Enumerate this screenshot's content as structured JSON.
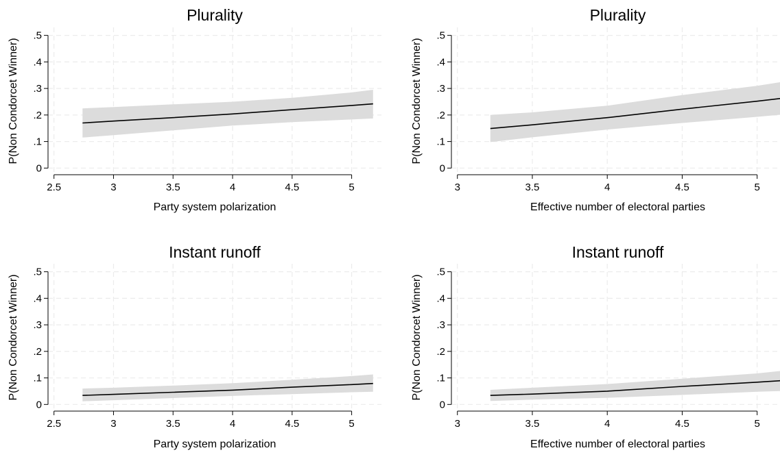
{
  "chart_data": [
    {
      "type": "line",
      "title": "Plurality",
      "xlabel": "Party system polarization",
      "ylabel": "P(Non Condorcet Winner)",
      "xlim": [
        2.45,
        5.25
      ],
      "ylim": [
        -0.025,
        0.53
      ],
      "xticks": [
        2.5,
        3,
        3.5,
        4,
        4.5,
        5
      ],
      "xtick_labels": [
        "2.5",
        "3",
        "3.5",
        "4",
        "4.5",
        "5"
      ],
      "yticks": [
        0,
        0.1,
        0.2,
        0.3,
        0.4,
        0.5
      ],
      "ytick_labels": [
        "0",
        ".1",
        ".2",
        ".3",
        ".4",
        ".5"
      ],
      "grid": true,
      "x": [
        2.74,
        3.0,
        3.5,
        4.0,
        4.5,
        5.0,
        5.18
      ],
      "series": [
        {
          "role": "estimate",
          "values": [
            0.17,
            0.177,
            0.19,
            0.204,
            0.22,
            0.236,
            0.242
          ]
        },
        {
          "role": "ci_upper",
          "values": [
            0.225,
            0.23,
            0.24,
            0.25,
            0.265,
            0.285,
            0.295
          ]
        },
        {
          "role": "ci_lower",
          "values": [
            0.115,
            0.124,
            0.142,
            0.16,
            0.173,
            0.183,
            0.187
          ]
        }
      ],
      "colors": {
        "line": "#000000",
        "band": "#dcdcdc",
        "grid": "#ebebeb"
      }
    },
    {
      "type": "line",
      "title": "Plurality",
      "xlabel": "Effective number of electoral parties",
      "ylabel": "P(Non Condorcet Winner)",
      "xlim": [
        2.96,
        5.18
      ],
      "ylim": [
        -0.025,
        0.53
      ],
      "xticks": [
        3,
        3.5,
        4,
        4.5,
        5
      ],
      "xtick_labels": [
        "3",
        "3.5",
        "4",
        "4.5",
        "5"
      ],
      "yticks": [
        0,
        0.1,
        0.2,
        0.3,
        0.4,
        0.5
      ],
      "ytick_labels": [
        "0",
        ".1",
        ".2",
        ".3",
        ".4",
        ".5"
      ],
      "grid": true,
      "x": [
        3.22,
        3.5,
        4.0,
        4.5,
        5.0,
        5.17
      ],
      "series": [
        {
          "role": "estimate",
          "values": [
            0.149,
            0.163,
            0.19,
            0.222,
            0.252,
            0.263
          ]
        },
        {
          "role": "ci_upper",
          "values": [
            0.2,
            0.21,
            0.235,
            0.275,
            0.31,
            0.325
          ]
        },
        {
          "role": "ci_lower",
          "values": [
            0.098,
            0.116,
            0.145,
            0.17,
            0.193,
            0.202
          ]
        }
      ],
      "colors": {
        "line": "#000000",
        "band": "#dcdcdc",
        "grid": "#ebebeb"
      }
    },
    {
      "type": "line",
      "title": "Instant runoff",
      "xlabel": "Party system polarization",
      "ylabel": "P(Non Condorcet Winner)",
      "xlim": [
        2.45,
        5.25
      ],
      "ylim": [
        -0.025,
        0.53
      ],
      "xticks": [
        2.5,
        3,
        3.5,
        4,
        4.5,
        5
      ],
      "xtick_labels": [
        "2.5",
        "3",
        "3.5",
        "4",
        "4.5",
        "5"
      ],
      "yticks": [
        0,
        0.1,
        0.2,
        0.3,
        0.4,
        0.5
      ],
      "ytick_labels": [
        "0",
        ".1",
        ".2",
        ".3",
        ".4",
        ".5"
      ],
      "grid": true,
      "x": [
        2.74,
        3.0,
        3.5,
        4.0,
        4.5,
        5.0,
        5.18
      ],
      "series": [
        {
          "role": "estimate",
          "values": [
            0.034,
            0.038,
            0.046,
            0.054,
            0.065,
            0.075,
            0.079
          ]
        },
        {
          "role": "ci_upper",
          "values": [
            0.06,
            0.063,
            0.071,
            0.08,
            0.093,
            0.107,
            0.113
          ]
        },
        {
          "role": "ci_lower",
          "values": [
            0.012,
            0.016,
            0.024,
            0.032,
            0.039,
            0.046,
            0.048
          ]
        }
      ],
      "colors": {
        "line": "#000000",
        "band": "#dcdcdc",
        "grid": "#ebebeb"
      }
    },
    {
      "type": "line",
      "title": "Instant runoff",
      "xlabel": "Effective number of electoral parties",
      "ylabel": "P(Non Condorcet Winner)",
      "xlim": [
        2.96,
        5.18
      ],
      "ylim": [
        -0.025,
        0.53
      ],
      "xticks": [
        3,
        3.5,
        4,
        4.5,
        5
      ],
      "xtick_labels": [
        "3",
        "3.5",
        "4",
        "4.5",
        "5"
      ],
      "yticks": [
        0,
        0.1,
        0.2,
        0.3,
        0.4,
        0.5
      ],
      "ytick_labels": [
        "0",
        ".1",
        ".2",
        ".3",
        ".4",
        ".5"
      ],
      "grid": true,
      "x": [
        3.22,
        3.5,
        4.0,
        4.5,
        5.0,
        5.17
      ],
      "series": [
        {
          "role": "estimate",
          "values": [
            0.034,
            0.039,
            0.05,
            0.068,
            0.084,
            0.09
          ]
        },
        {
          "role": "ci_upper",
          "values": [
            0.055,
            0.063,
            0.077,
            0.097,
            0.117,
            0.127
          ]
        },
        {
          "role": "ci_lower",
          "values": [
            0.013,
            0.018,
            0.025,
            0.036,
            0.048,
            0.051
          ]
        }
      ],
      "colors": {
        "line": "#000000",
        "band": "#dcdcdc",
        "grid": "#ebebeb"
      }
    }
  ]
}
